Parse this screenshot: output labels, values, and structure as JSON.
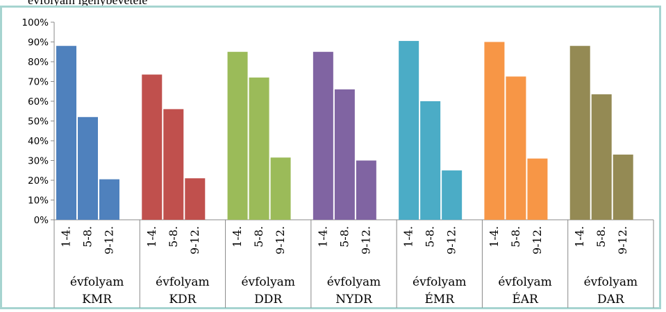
{
  "top_text": "évfolyam igénybevétele",
  "chart_data": {
    "type": "bar",
    "ylim": [
      0,
      100
    ],
    "y_ticks": [
      "0%",
      "10%",
      "20%",
      "30%",
      "40%",
      "50%",
      "60%",
      "70%",
      "80%",
      "90%",
      "100%"
    ],
    "grid": false,
    "groups": [
      {
        "line1": "évfolyam",
        "line2": "KMR",
        "color": "#4f81bd",
        "bars": [
          {
            "label": "1-4.",
            "value": 88
          },
          {
            "label": "5-8.",
            "value": 52
          },
          {
            "label": "9-12.",
            "value": 20.5
          }
        ]
      },
      {
        "line1": "évfolyam",
        "line2": "KDR",
        "color": "#c0504d",
        "bars": [
          {
            "label": "1-4.",
            "value": 73.5
          },
          {
            "label": "5-8.",
            "value": 56
          },
          {
            "label": "9-12.",
            "value": 21
          }
        ]
      },
      {
        "line1": "évfolyam",
        "line2": "DDR",
        "color": "#9bbb59",
        "bars": [
          {
            "label": "1-4.",
            "value": 85
          },
          {
            "label": "5-8.",
            "value": 72
          },
          {
            "label": "9-12.",
            "value": 31.5
          }
        ]
      },
      {
        "line1": "évfolyam",
        "line2": "NYDR",
        "color": "#8064a2",
        "bars": [
          {
            "label": "1-4.",
            "value": 85
          },
          {
            "label": "5-8.",
            "value": 66
          },
          {
            "label": "9-12.",
            "value": 30
          }
        ]
      },
      {
        "line1": "évfolyam",
        "line2": "ÉMR",
        "color": "#4bacc6",
        "bars": [
          {
            "label": "1-4.",
            "value": 90.5
          },
          {
            "label": "5-8.",
            "value": 60
          },
          {
            "label": "9-12.",
            "value": 25
          }
        ]
      },
      {
        "line1": "évfolyam",
        "line2": "ÉAR",
        "color": "#f79646",
        "bars": [
          {
            "label": "1-4.",
            "value": 90
          },
          {
            "label": "5-8.",
            "value": 72.5
          },
          {
            "label": "9-12.",
            "value": 31
          }
        ]
      },
      {
        "line1": "évfolyam",
        "line2": "DAR",
        "color": "#948a54",
        "bars": [
          {
            "label": "1-4.",
            "value": 88
          },
          {
            "label": "5-8.",
            "value": 63.5
          },
          {
            "label": "9-12.",
            "value": 33
          }
        ]
      }
    ]
  }
}
